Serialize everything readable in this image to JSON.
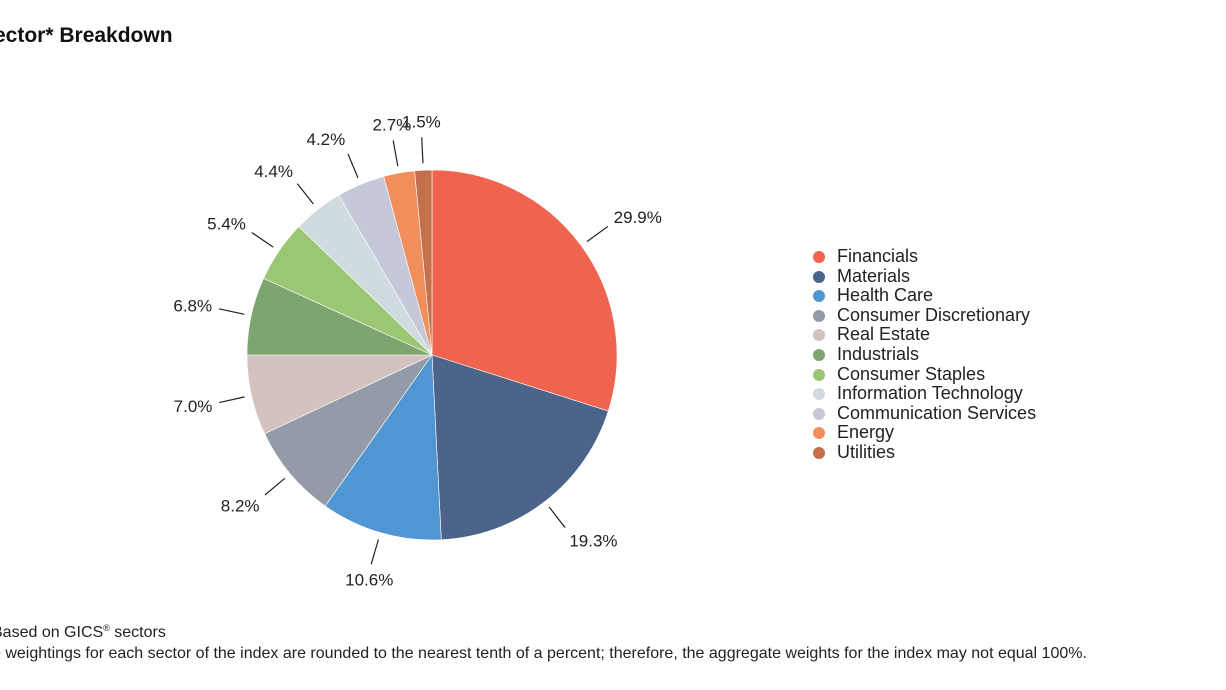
{
  "title": "ector* Breakdown",
  "chart_data": {
    "type": "pie",
    "title": "ector* Breakdown",
    "unit": "%",
    "slices": [
      {
        "name": "Financials",
        "value": 29.9,
        "label": "29.9%",
        "color": "#ef634f"
      },
      {
        "name": "Materials",
        "value": 19.3,
        "label": "19.3%",
        "color": "#4c6489"
      },
      {
        "name": "Health Care",
        "value": 10.6,
        "label": "10.6%",
        "color": "#5096d3"
      },
      {
        "name": "Consumer Discretionary",
        "value": 8.2,
        "label": "8.2%",
        "color": "#949ba8"
      },
      {
        "name": "Real Estate",
        "value": 7.0,
        "label": "7.0%",
        "color": "#d4c2c0"
      },
      {
        "name": "Industrials",
        "value": 6.8,
        "label": "6.8%",
        "color": "#7ea570"
      },
      {
        "name": "Consumer Staples",
        "value": 5.4,
        "label": "5.4%",
        "color": "#9bc674"
      },
      {
        "name": "Information Technology",
        "value": 4.4,
        "label": "4.4%",
        "color": "#cfdbde"
      },
      {
        "name": "Communication Services",
        "value": 4.2,
        "label": "4.2%",
        "color": "#c6c8da"
      },
      {
        "name": "Energy",
        "value": 2.7,
        "label": "2.7%",
        "color": "#f08e5c"
      },
      {
        "name": "Utilities",
        "value": 1.5,
        "label": "1.5%",
        "color": "#c4704c"
      }
    ],
    "legend_position": "right"
  },
  "footnotes": {
    "line1_prefix": "Based on GICS",
    "line1_mark": "®",
    "line1_suffix": " sectors",
    "line2": "e weightings for each sector of the index are rounded to the nearest tenth of a percent; therefore, the aggregate weights for the index may not equal 100%."
  }
}
